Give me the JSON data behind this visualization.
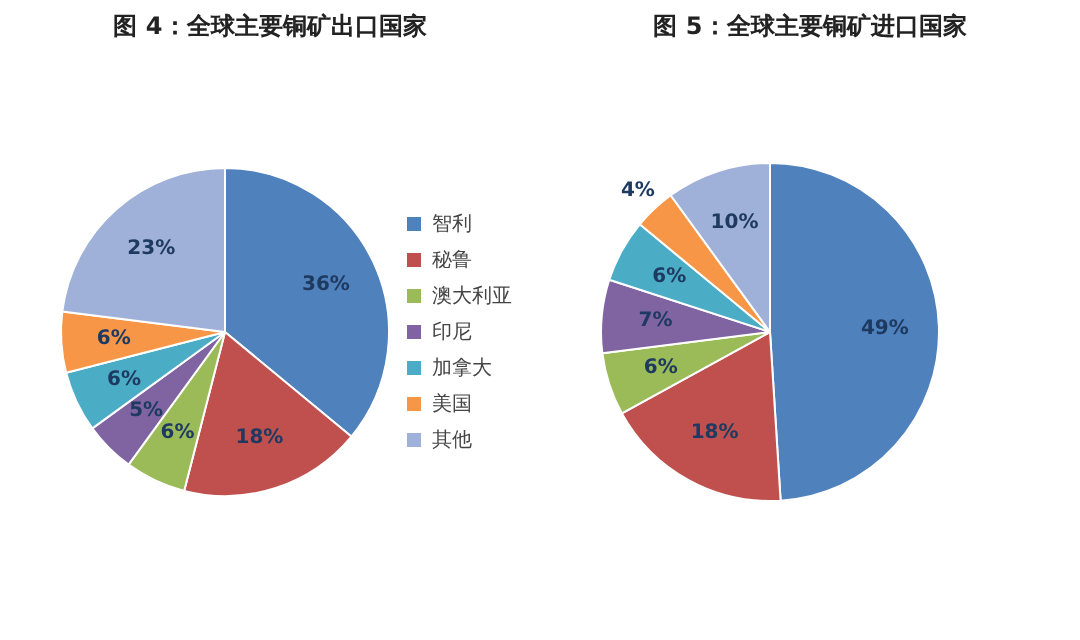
{
  "chart_data": [
    {
      "type": "pie",
      "title": "图 4：全球主要铜矿出口国家",
      "categories": [
        "智利",
        "秘鲁",
        "澳大利亚",
        "印尼",
        "加拿大",
        "美国",
        "其他"
      ],
      "values": [
        36,
        18,
        6,
        5,
        6,
        6,
        23
      ],
      "colors": [
        "#4f81bd",
        "#c0504d",
        "#9bbb59",
        "#8064a2",
        "#4bacc6",
        "#f79646",
        "#9fb1d8"
      ],
      "value_labels": [
        "36%",
        "18%",
        "6%",
        "5%",
        "6%",
        "6%",
        "23%"
      ],
      "legend": "right"
    },
    {
      "type": "pie",
      "title": "图 5：全球主要铜矿进口国家",
      "categories": [
        null,
        null,
        null,
        null,
        null,
        null,
        null
      ],
      "values": [
        49,
        18,
        6,
        7,
        6,
        4,
        10
      ],
      "colors": [
        "#4f81bd",
        "#c0504d",
        "#9bbb59",
        "#8064a2",
        "#4bacc6",
        "#f79646",
        "#9fb1d8"
      ],
      "value_labels": [
        "49%",
        "18%",
        "6%",
        "7%",
        "6%",
        "4%",
        "10%"
      ]
    }
  ]
}
